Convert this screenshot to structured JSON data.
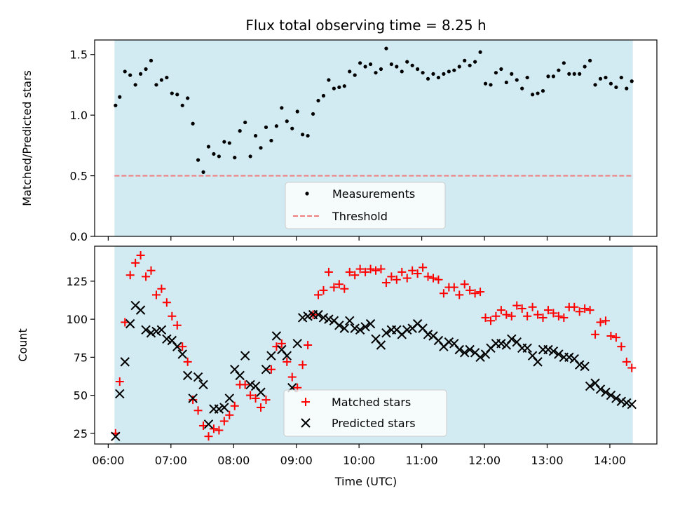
{
  "chart_data": [
    {
      "type": "scatter",
      "title": "Flux total observing time = 8.25 h",
      "xlabel": "",
      "ylabel": "Matched/Predicted stars",
      "ylim": [
        0,
        1.62
      ],
      "yticks": [
        0.0,
        0.5,
        1.0,
        1.5
      ],
      "ytick_labels": [
        "0.0",
        "0.5",
        "1.0",
        "1.5"
      ],
      "shaded_span": {
        "start": "06:06",
        "end": "14:22",
        "color": "#add8e6"
      },
      "legend_position": "lower-center",
      "threshold": {
        "name": "Threshold",
        "value": 0.5,
        "color": "#f08080",
        "style": "dashed"
      },
      "series": [
        {
          "name": "Measurements",
          "marker": "dot",
          "color": "#000000",
          "x": [
            "06:07",
            "06:11",
            "06:16",
            "06:21",
            "06:26",
            "06:31",
            "06:36",
            "06:41",
            "06:46",
            "06:51",
            "06:56",
            "07:01",
            "07:06",
            "07:11",
            "07:16",
            "07:21",
            "07:26",
            "07:31",
            "07:36",
            "07:41",
            "07:46",
            "07:51",
            "07:56",
            "08:01",
            "08:06",
            "08:11",
            "08:16",
            "08:21",
            "08:26",
            "08:31",
            "08:36",
            "08:41",
            "08:46",
            "08:51",
            "08:56",
            "09:01",
            "09:06",
            "09:11",
            "09:16",
            "09:21",
            "09:26",
            "09:31",
            "09:36",
            "09:41",
            "09:46",
            "09:51",
            "09:56",
            "10:01",
            "10:06",
            "10:11",
            "10:16",
            "10:21",
            "10:26",
            "10:31",
            "10:36",
            "10:41",
            "10:46",
            "10:51",
            "10:56",
            "11:01",
            "11:06",
            "11:11",
            "11:16",
            "11:21",
            "11:26",
            "11:31",
            "11:36",
            "11:41",
            "11:46",
            "11:51",
            "11:56",
            "12:01",
            "12:06",
            "12:11",
            "12:16",
            "12:21",
            "12:26",
            "12:31",
            "12:36",
            "12:41",
            "12:46",
            "12:51",
            "12:56",
            "13:01",
            "13:06",
            "13:11",
            "13:16",
            "13:21",
            "13:26",
            "13:31",
            "13:36",
            "13:41",
            "13:46",
            "13:51",
            "13:56",
            "14:01",
            "14:06",
            "14:11",
            "14:16",
            "14:21"
          ],
          "values": [
            1.08,
            1.15,
            1.36,
            1.33,
            1.25,
            1.34,
            1.38,
            1.45,
            1.25,
            1.29,
            1.31,
            1.18,
            1.17,
            1.08,
            1.14,
            0.93,
            0.63,
            0.53,
            0.74,
            0.68,
            0.66,
            0.78,
            0.77,
            0.65,
            0.87,
            0.94,
            0.66,
            0.83,
            0.73,
            0.9,
            0.79,
            0.91,
            1.06,
            0.95,
            0.89,
            1.03,
            0.84,
            0.83,
            1.01,
            1.12,
            1.16,
            1.29,
            1.22,
            1.23,
            1.24,
            1.36,
            1.33,
            1.43,
            1.4,
            1.42,
            1.35,
            1.38,
            1.55,
            1.42,
            1.4,
            1.36,
            1.44,
            1.41,
            1.38,
            1.35,
            1.3,
            1.34,
            1.31,
            1.34,
            1.36,
            1.37,
            1.4,
            1.45,
            1.41,
            1.44,
            1.52,
            1.26,
            1.25,
            1.35,
            1.38,
            1.27,
            1.34,
            1.29,
            1.22,
            1.31,
            1.17,
            1.18,
            1.2,
            1.32,
            1.32,
            1.37,
            1.43,
            1.34,
            1.34,
            1.34,
            1.4,
            1.45,
            1.25,
            1.3,
            1.31,
            1.26,
            1.23,
            1.31,
            1.22,
            1.28
          ]
        }
      ]
    },
    {
      "type": "scatter",
      "title": "",
      "xlabel": "Time (UTC)",
      "ylabel": "Count",
      "ylim": [
        18,
        148
      ],
      "yticks": [
        25,
        50,
        75,
        100,
        125
      ],
      "ytick_labels": [
        "25",
        "50",
        "75",
        "100",
        "125"
      ],
      "x_range": [
        "05:47",
        "14:45"
      ],
      "xticks": [
        "06:00",
        "07:00",
        "08:00",
        "09:00",
        "10:00",
        "11:00",
        "12:00",
        "13:00",
        "14:00"
      ],
      "shaded_span": {
        "start": "06:06",
        "end": "14:22",
        "color": "#add8e6"
      },
      "legend_position": "lower-center",
      "series": [
        {
          "name": "Matched stars",
          "marker": "plus",
          "color": "#ff0000",
          "x": [
            "06:07",
            "06:11",
            "06:16",
            "06:21",
            "06:26",
            "06:31",
            "06:36",
            "06:41",
            "06:46",
            "06:51",
            "06:56",
            "07:01",
            "07:06",
            "07:11",
            "07:16",
            "07:21",
            "07:26",
            "07:31",
            "07:36",
            "07:41",
            "07:46",
            "07:51",
            "07:56",
            "08:01",
            "08:06",
            "08:11",
            "08:16",
            "08:21",
            "08:26",
            "08:31",
            "08:36",
            "08:41",
            "08:46",
            "08:51",
            "08:56",
            "09:01",
            "09:06",
            "09:11",
            "09:16",
            "09:21",
            "09:26",
            "09:31",
            "09:36",
            "09:41",
            "09:46",
            "09:51",
            "09:56",
            "10:01",
            "10:06",
            "10:11",
            "10:16",
            "10:21",
            "10:26",
            "10:31",
            "10:36",
            "10:41",
            "10:46",
            "10:51",
            "10:56",
            "11:01",
            "11:06",
            "11:11",
            "11:16",
            "11:21",
            "11:26",
            "11:31",
            "11:36",
            "11:41",
            "11:46",
            "11:51",
            "11:56",
            "12:01",
            "12:06",
            "12:11",
            "12:16",
            "12:21",
            "12:26",
            "12:31",
            "12:36",
            "12:41",
            "12:46",
            "12:51",
            "12:56",
            "13:01",
            "13:06",
            "13:11",
            "13:16",
            "13:21",
            "13:26",
            "13:31",
            "13:36",
            "13:41",
            "13:46",
            "13:51",
            "13:56",
            "14:01",
            "14:06",
            "14:11",
            "14:16",
            "14:21"
          ],
          "values": [
            25,
            59,
            98,
            129,
            137,
            142,
            128,
            132,
            116,
            120,
            111,
            102,
            96,
            82,
            72,
            47,
            40,
            30,
            23,
            28,
            27,
            33,
            37,
            43,
            57,
            57,
            50,
            48,
            42,
            47,
            67,
            82,
            84,
            72,
            62,
            55,
            70,
            83,
            103,
            116,
            119,
            131,
            121,
            123,
            120,
            131,
            129,
            133,
            131,
            133,
            132,
            133,
            124,
            128,
            126,
            131,
            127,
            132,
            130,
            134,
            128,
            127,
            126,
            117,
            121,
            121,
            116,
            123,
            119,
            117,
            118,
            101,
            99,
            102,
            106,
            103,
            102,
            109,
            107,
            102,
            108,
            103,
            101,
            106,
            104,
            102,
            101,
            108,
            108,
            105,
            107,
            106,
            90,
            98,
            99,
            89,
            88,
            82,
            72,
            68
          ]
        },
        {
          "name": "Predicted stars",
          "marker": "x",
          "color": "#000000",
          "x": [
            "06:07",
            "06:11",
            "06:16",
            "06:21",
            "06:26",
            "06:31",
            "06:36",
            "06:41",
            "06:46",
            "06:51",
            "06:56",
            "07:01",
            "07:06",
            "07:11",
            "07:16",
            "07:21",
            "07:26",
            "07:31",
            "07:36",
            "07:41",
            "07:46",
            "07:51",
            "07:56",
            "08:01",
            "08:06",
            "08:11",
            "08:16",
            "08:21",
            "08:26",
            "08:31",
            "08:36",
            "08:41",
            "08:46",
            "08:51",
            "08:56",
            "09:01",
            "09:06",
            "09:11",
            "09:16",
            "09:21",
            "09:26",
            "09:31",
            "09:36",
            "09:41",
            "09:46",
            "09:51",
            "09:56",
            "10:01",
            "10:06",
            "10:11",
            "10:16",
            "10:21",
            "10:26",
            "10:31",
            "10:36",
            "10:41",
            "10:46",
            "10:51",
            "10:56",
            "11:01",
            "11:06",
            "11:11",
            "11:16",
            "11:21",
            "11:26",
            "11:31",
            "11:36",
            "11:41",
            "11:46",
            "11:51",
            "11:56",
            "12:01",
            "12:06",
            "12:11",
            "12:16",
            "12:21",
            "12:26",
            "12:31",
            "12:36",
            "12:41",
            "12:46",
            "12:51",
            "12:56",
            "13:01",
            "13:06",
            "13:11",
            "13:16",
            "13:21",
            "13:26",
            "13:31",
            "13:36",
            "13:41",
            "13:46",
            "13:51",
            "13:56",
            "14:01",
            "14:06",
            "14:11",
            "14:16",
            "14:21"
          ],
          "values": [
            23,
            51,
            72,
            97,
            109,
            106,
            93,
            91,
            92,
            93,
            87,
            86,
            82,
            77,
            63,
            48,
            62,
            57,
            31,
            41,
            41,
            42,
            48,
            67,
            63,
            76,
            57,
            56,
            52,
            67,
            76,
            89,
            80,
            76,
            55,
            84,
            101,
            102,
            103,
            103,
            101,
            100,
            99,
            96,
            94,
            99,
            94,
            93,
            95,
            97,
            87,
            83,
            91,
            93,
            93,
            90,
            93,
            94,
            97,
            94,
            90,
            89,
            86,
            82,
            85,
            84,
            80,
            78,
            80,
            78,
            75,
            77,
            81,
            84,
            84,
            83,
            87,
            85,
            81,
            81,
            76,
            72,
            80,
            80,
            79,
            77,
            75,
            75,
            74,
            70,
            69,
            56,
            58,
            54,
            52,
            50,
            48,
            46,
            45,
            44
          ]
        }
      ]
    }
  ]
}
